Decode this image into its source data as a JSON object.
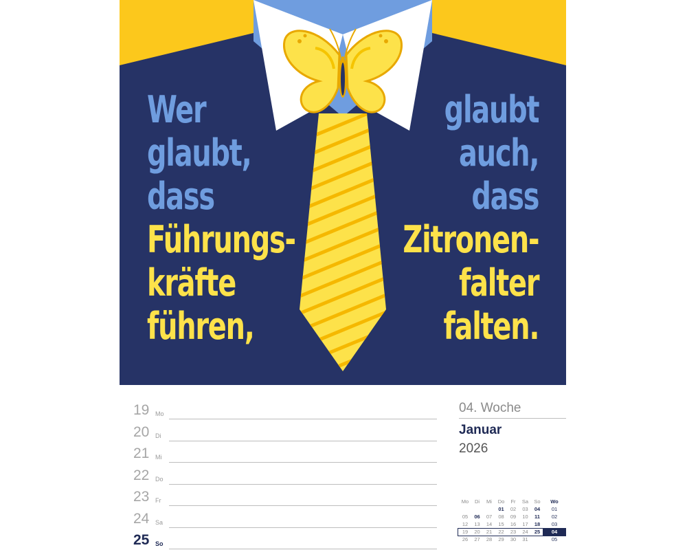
{
  "quote": {
    "left_lines": [
      {
        "text": "Wer",
        "color": "#6f9ddf"
      },
      {
        "text": "glaubt,",
        "color": "#6f9ddf"
      },
      {
        "text": "dass",
        "color": "#6f9ddf"
      },
      {
        "text": "Führungs-",
        "color": "#fde24a"
      },
      {
        "text": "kräfte",
        "color": "#fde24a"
      },
      {
        "text": "führen,",
        "color": "#fde24a"
      }
    ],
    "right_lines": [
      {
        "text": "glaubt",
        "color": "#6f9ddf"
      },
      {
        "text": "auch,",
        "color": "#6f9ddf"
      },
      {
        "text": "dass",
        "color": "#6f9ddf"
      },
      {
        "text": "Zitronen-",
        "color": "#fde24a"
      },
      {
        "text": "falter",
        "color": "#fde24a"
      },
      {
        "text": "falten.",
        "color": "#fde24a"
      }
    ]
  },
  "colors": {
    "suit": "#263366",
    "shoulder": "#fcc81c",
    "shirt": "#ffffff",
    "shirt_blue": "#6f9ddf",
    "tie": "#fde24a",
    "tie_stripe": "#f5b800",
    "accent_navy": "#1f2a55"
  },
  "illustration": {
    "objects": [
      "butterfly-icon",
      "tie-icon",
      "shirt-collar-icon"
    ]
  },
  "days": [
    {
      "num": "19",
      "abbr": "Mo",
      "today": false
    },
    {
      "num": "20",
      "abbr": "Di",
      "today": false
    },
    {
      "num": "21",
      "abbr": "Mi",
      "today": false
    },
    {
      "num": "22",
      "abbr": "Do",
      "today": false
    },
    {
      "num": "23",
      "abbr": "Fr",
      "today": false
    },
    {
      "num": "24",
      "abbr": "Sa",
      "today": false
    },
    {
      "num": "25",
      "abbr": "So",
      "today": true
    }
  ],
  "week": {
    "label": "04. Woche",
    "month": "Januar",
    "year": "2026"
  },
  "mini_calendar": {
    "headers": [
      "Mo",
      "Di",
      "Mi",
      "Do",
      "Fr",
      "Sa",
      "So",
      "Wo"
    ],
    "rows": [
      {
        "days": [
          "",
          "",
          "",
          "01",
          "02",
          "03",
          "04"
        ],
        "week": "01",
        "current": false
      },
      {
        "days": [
          "05",
          "06",
          "07",
          "08",
          "09",
          "10",
          "11"
        ],
        "week": "02",
        "current": false
      },
      {
        "days": [
          "12",
          "13",
          "14",
          "15",
          "16",
          "17",
          "18"
        ],
        "week": "03",
        "current": false
      },
      {
        "days": [
          "19",
          "20",
          "21",
          "22",
          "23",
          "24",
          "25"
        ],
        "week": "04",
        "current": true
      },
      {
        "days": [
          "26",
          "27",
          "28",
          "29",
          "30",
          "31",
          ""
        ],
        "week": "05",
        "current": false
      }
    ],
    "bold_days": [
      "01",
      "06",
      "11",
      "04",
      "18",
      "25"
    ]
  }
}
